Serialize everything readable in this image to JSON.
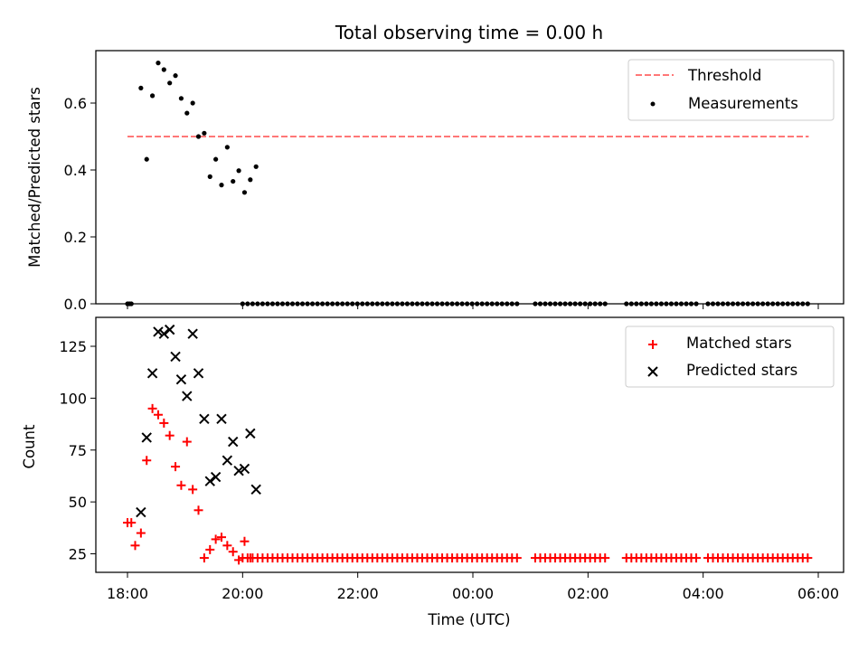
{
  "chart_data": [
    {
      "type": "scatter",
      "title": "Total observing time = 0.00 h",
      "xlabel": "",
      "ylabel": "Matched/Predicted stars",
      "x_axis": "time_utc_hours",
      "xlim": [
        "17:31",
        "06:34"
      ],
      "ylim": [
        0,
        0.75
      ],
      "yticks": [
        "0.0",
        "0.2",
        "0.4",
        "0.6"
      ],
      "legend_position": "top-right",
      "grid": false,
      "threshold": {
        "name": "Threshold",
        "value": 0.5,
        "x_range": [
          "18:00",
          "05:50"
        ],
        "color": "#ff7777",
        "style": "dashed"
      },
      "series": [
        {
          "name": "Measurements",
          "color": "#000000",
          "marker": "dot",
          "points": [
            [
              "18:00",
              0.0
            ],
            [
              "18:02",
              0.0
            ],
            [
              "18:04",
              0.0
            ],
            [
              "18:14",
              0.645
            ],
            [
              "18:20",
              0.432
            ],
            [
              "18:26",
              0.622
            ],
            [
              "18:32",
              0.72
            ],
            [
              "18:38",
              0.7
            ],
            [
              "18:44",
              0.66
            ],
            [
              "18:50",
              0.682
            ],
            [
              "18:56",
              0.614
            ],
            [
              "19:02",
              0.57
            ],
            [
              "19:08",
              0.6
            ],
            [
              "19:14",
              0.5
            ],
            [
              "19:20",
              0.51
            ],
            [
              "19:26",
              0.38
            ],
            [
              "19:32",
              0.432
            ],
            [
              "19:38",
              0.355
            ],
            [
              "19:44",
              0.468
            ],
            [
              "19:50",
              0.366
            ],
            [
              "19:56",
              0.398
            ],
            [
              "20:02",
              0.333
            ],
            [
              "20:08",
              0.371
            ],
            [
              "20:14",
              0.41
            ]
          ],
          "zero_run_segments": [
            [
              "20:00",
              "00:50"
            ],
            [
              "01:05",
              "02:20"
            ],
            [
              "02:40",
              "03:55"
            ],
            [
              "04:05",
              "05:50"
            ]
          ],
          "zero_run_values": 0.0
        }
      ]
    },
    {
      "type": "scatter",
      "title": "",
      "xlabel": "Time (UTC)",
      "ylabel": "Count",
      "x_axis": "time_utc_hours",
      "xlim": [
        "17:31",
        "06:34"
      ],
      "ylim": [
        17,
        140
      ],
      "yticks": [
        "25",
        "50",
        "75",
        "100",
        "125"
      ],
      "xticks": [
        "18:00",
        "20:00",
        "22:00",
        "00:00",
        "02:00",
        "04:00",
        "06:00"
      ],
      "legend_position": "top-right",
      "grid": false,
      "series": [
        {
          "name": "Matched stars",
          "color": "#ff0000",
          "marker": "plus",
          "points": [
            [
              "18:00",
              40
            ],
            [
              "18:04",
              40
            ],
            [
              "18:08",
              29
            ],
            [
              "18:14",
              35
            ],
            [
              "18:20",
              70
            ],
            [
              "18:26",
              95
            ],
            [
              "18:32",
              92
            ],
            [
              "18:38",
              88
            ],
            [
              "18:44",
              82
            ],
            [
              "18:50",
              67
            ],
            [
              "18:56",
              58
            ],
            [
              "19:02",
              79
            ],
            [
              "19:08",
              56
            ],
            [
              "19:14",
              46
            ],
            [
              "19:20",
              23
            ],
            [
              "19:26",
              27
            ],
            [
              "19:32",
              32
            ],
            [
              "19:38",
              33
            ],
            [
              "19:44",
              29
            ],
            [
              "19:50",
              26
            ],
            [
              "19:56",
              22
            ],
            [
              "20:02",
              31
            ],
            [
              "20:08",
              23
            ]
          ],
          "zero_run_segments": [
            [
              "20:00",
              "00:50"
            ],
            [
              "01:05",
              "02:20"
            ],
            [
              "02:40",
              "03:55"
            ],
            [
              "04:05",
              "05:50"
            ]
          ],
          "zero_run_values": 23
        },
        {
          "name": "Predicted stars",
          "color": "#000000",
          "marker": "x",
          "points": [
            [
              "18:14",
              45
            ],
            [
              "18:20",
              81
            ],
            [
              "18:26",
              112
            ],
            [
              "18:32",
              132
            ],
            [
              "18:38",
              131
            ],
            [
              "18:44",
              133
            ],
            [
              "18:50",
              120
            ],
            [
              "18:56",
              109
            ],
            [
              "19:02",
              101
            ],
            [
              "19:08",
              131
            ],
            [
              "19:14",
              112
            ],
            [
              "19:20",
              90
            ],
            [
              "19:26",
              60
            ],
            [
              "19:32",
              62
            ],
            [
              "19:38",
              90
            ],
            [
              "19:44",
              70
            ],
            [
              "19:50",
              79
            ],
            [
              "19:56",
              65
            ],
            [
              "20:02",
              66
            ],
            [
              "20:08",
              83
            ],
            [
              "20:14",
              56
            ]
          ]
        }
      ]
    }
  ]
}
